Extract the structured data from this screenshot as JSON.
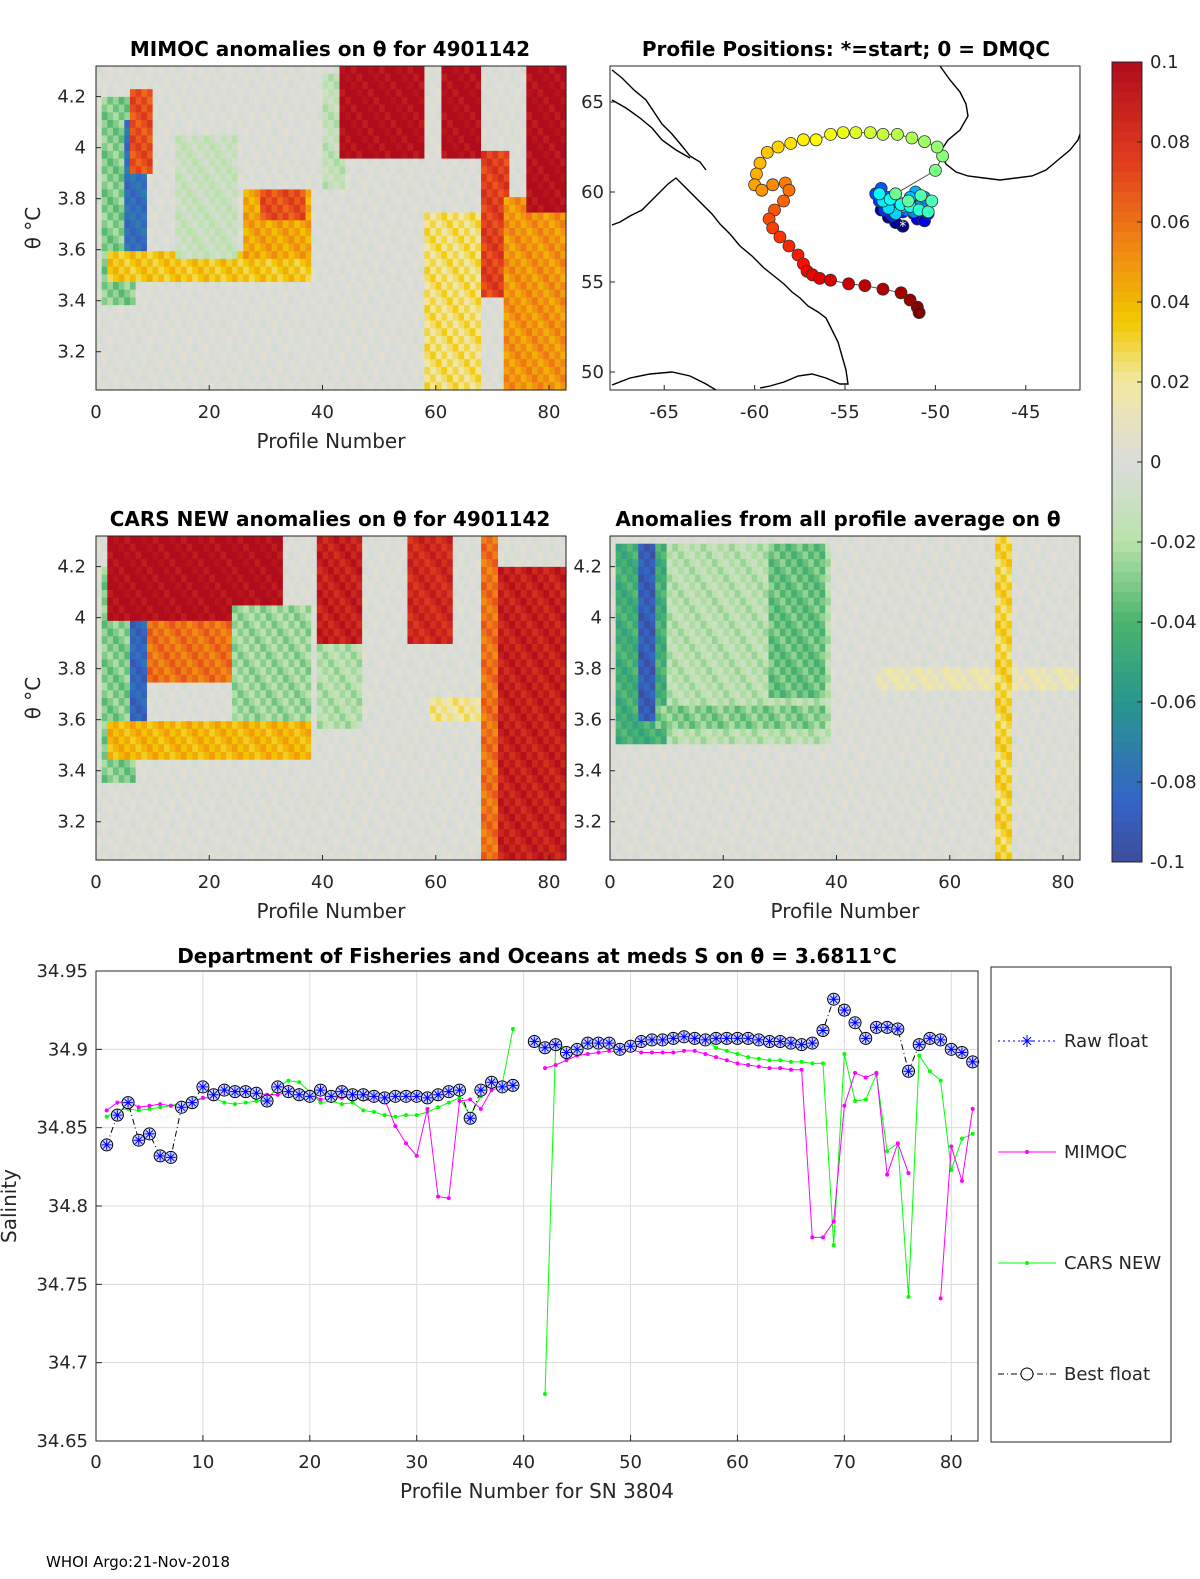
{
  "footer": "WHOI Argo:21-Nov-2018",
  "colors": {
    "background": "#ffffff",
    "nan_gray": "#dcdcdc",
    "raw_float": "#0000ff",
    "mimoc": "#ff00ff",
    "cars": "#00ff00",
    "best": "#000000",
    "track_line": "#555555"
  },
  "chart_data": [
    {
      "id": "mimoc_anomaly",
      "type": "heatmap",
      "title": "MIMOC anomalies on θ  for 4901142",
      "xlabel": "Profile Number",
      "ylabel": "θ °C",
      "xlim": [
        0,
        83
      ],
      "ylim": [
        3.05,
        4.32
      ],
      "xticks": [
        "0",
        "20",
        "40",
        "60",
        "80"
      ],
      "yticks": [
        "3.2",
        "3.4",
        "3.6",
        "3.8",
        "4",
        "4.2"
      ],
      "bands": [
        {
          "x0": 1,
          "x1": 7,
          "y0": 3.38,
          "y1": 4.2,
          "v": -0.03
        },
        {
          "x0": 5,
          "x1": 9,
          "y0": 3.6,
          "y1": 4.12,
          "v": -0.08
        },
        {
          "x0": 6,
          "x1": 10,
          "y0": 3.9,
          "y1": 4.22,
          "v": 0.07
        },
        {
          "x0": 2,
          "x1": 38,
          "y0": 3.46,
          "y1": 3.6,
          "v": 0.035
        },
        {
          "x0": 14,
          "x1": 25,
          "y0": 3.55,
          "y1": 4.05,
          "v": -0.012
        },
        {
          "x0": 26,
          "x1": 38,
          "y0": 3.55,
          "y1": 3.85,
          "v": 0.045
        },
        {
          "x0": 29,
          "x1": 37,
          "y0": 3.72,
          "y1": 3.84,
          "v": 0.07
        },
        {
          "x0": 40,
          "x1": 44,
          "y0": 3.85,
          "y1": 4.3,
          "v": -0.015
        },
        {
          "x0": 43,
          "x1": 58,
          "y0": 3.95,
          "y1": 4.32,
          "v": 0.1
        },
        {
          "x0": 58,
          "x1": 68,
          "y0": 3.05,
          "y1": 3.75,
          "v": 0.025
        },
        {
          "x0": 61,
          "x1": 68,
          "y0": 3.95,
          "y1": 4.32,
          "v": 0.1
        },
        {
          "x0": 68,
          "x1": 73,
          "y0": 3.4,
          "y1": 4.0,
          "v": 0.075
        },
        {
          "x0": 72,
          "x1": 83,
          "y0": 3.05,
          "y1": 3.8,
          "v": 0.05
        },
        {
          "x0": 76,
          "x1": 83,
          "y0": 3.75,
          "y1": 4.32,
          "v": 0.1
        }
      ]
    },
    {
      "id": "profile_positions",
      "type": "scatter",
      "title": "Profile Positions: *=start; 0 = DMQC",
      "xlim": [
        -68,
        -42
      ],
      "ylim": [
        49,
        67
      ],
      "xticks": [
        "-65",
        "-60",
        "-55",
        "-50",
        "-45"
      ],
      "yticks": [
        "50",
        "55",
        "60",
        "65"
      ],
      "lon": [
        -51.8,
        -52.2,
        -52.6,
        -53.0,
        -52.2,
        -51.6,
        -51.2,
        -51.0,
        -50.6,
        -50.4,
        -51.0,
        -51.4,
        -51.8,
        -52.4,
        -52.8,
        -53.1,
        -53.3,
        -53.0,
        -52.6,
        -52.2,
        -51.6,
        -51.2,
        -50.8,
        -50.6,
        -51.1,
        -51.4,
        -51.8,
        -52.2,
        -52.6,
        -52.9,
        -53.1,
        -52.5,
        -51.9,
        -51.4,
        -50.9,
        -50.4,
        -50.2,
        -50.8,
        -51.5,
        -52.2,
        -50.0,
        -49.6,
        -49.9,
        -50.6,
        -51.3,
        -52.1,
        -52.9,
        -53.6,
        -54.4,
        -55.1,
        -55.8,
        -56.6,
        -57.3,
        -58.0,
        -58.7,
        -59.3,
        -59.7,
        -59.9,
        -60.0,
        -59.6,
        -59.0,
        -58.3,
        -58.1,
        -58.4,
        -58.9,
        -59.2,
        -59.0,
        -58.6,
        -58.1,
        -57.6,
        -57.3,
        -57.1,
        -56.8,
        -56.4,
        -55.8,
        -54.8,
        -53.9,
        -52.9,
        -51.9,
        -51.4,
        -51.0,
        -50.9
      ],
      "lat": [
        58.1,
        58.3,
        58.6,
        59.0,
        59.3,
        59.1,
        58.8,
        58.5,
        58.4,
        58.8,
        59.2,
        59.4,
        58.9,
        58.7,
        59.0,
        59.5,
        59.9,
        60.2,
        59.7,
        59.3,
        59.0,
        58.9,
        59.3,
        59.7,
        60.0,
        59.7,
        59.2,
        58.8,
        59.1,
        59.5,
        59.9,
        59.6,
        59.3,
        59.2,
        59.0,
        58.9,
        59.5,
        59.8,
        59.5,
        59.9,
        61.2,
        62.0,
        62.5,
        62.8,
        63.0,
        63.2,
        63.2,
        63.3,
        63.3,
        63.3,
        63.2,
        62.9,
        62.9,
        62.7,
        62.5,
        62.2,
        61.6,
        61.0,
        60.4,
        60.1,
        60.4,
        60.5,
        60.1,
        59.5,
        59.0,
        58.5,
        58.0,
        57.5,
        57.0,
        56.5,
        56.0,
        55.6,
        55.4,
        55.2,
        55.1,
        54.9,
        54.8,
        54.6,
        54.4,
        54.0,
        53.6,
        53.3
      ]
    },
    {
      "id": "colorbar",
      "type": "heatmap",
      "colormap": "parula-like diverging (blue to red)",
      "clim": [
        -0.1,
        0.1
      ],
      "ticks": [
        "0.1",
        "0.08",
        "0.06",
        "0.04",
        "0.02",
        "0",
        "-0.02",
        "-0.04",
        "-0.06",
        "-0.08",
        "-0.1"
      ]
    },
    {
      "id": "cars_anomaly",
      "type": "heatmap",
      "title": "CARS NEW anomalies on θ for 4901142",
      "xlabel": "Profile Number",
      "ylabel": "θ °C",
      "xlim": [
        0,
        83
      ],
      "ylim": [
        3.05,
        4.32
      ],
      "xticks": [
        "0",
        "20",
        "40",
        "60",
        "80"
      ],
      "yticks": [
        "3.2",
        "3.4",
        "3.6",
        "3.8",
        "4",
        "4.2"
      ],
      "bands": [
        {
          "x0": 1,
          "x1": 7,
          "y0": 3.35,
          "y1": 4.2,
          "v": -0.03
        },
        {
          "x0": 6,
          "x1": 9,
          "y0": 3.6,
          "y1": 4.08,
          "v": -0.085
        },
        {
          "x0": 2,
          "x1": 38,
          "y0": 3.45,
          "y1": 3.58,
          "v": 0.04
        },
        {
          "x0": 2,
          "x1": 33,
          "y0": 3.98,
          "y1": 4.32,
          "v": 0.1
        },
        {
          "x0": 9,
          "x1": 33,
          "y0": 3.75,
          "y1": 4.0,
          "v": 0.06
        },
        {
          "x0": 24,
          "x1": 38,
          "y0": 3.6,
          "y1": 4.05,
          "v": -0.025
        },
        {
          "x0": 39,
          "x1": 47,
          "y0": 3.9,
          "y1": 4.32,
          "v": 0.09
        },
        {
          "x0": 39,
          "x1": 47,
          "y0": 3.55,
          "y1": 3.9,
          "v": -0.02
        },
        {
          "x0": 55,
          "x1": 63,
          "y0": 3.9,
          "y1": 4.32,
          "v": 0.085
        },
        {
          "x0": 59,
          "x1": 68,
          "y0": 3.58,
          "y1": 3.68,
          "v": 0.02
        },
        {
          "x0": 68,
          "x1": 71,
          "y0": 3.05,
          "y1": 4.32,
          "v": 0.06
        },
        {
          "x0": 71,
          "x1": 83,
          "y0": 3.05,
          "y1": 4.2,
          "v": 0.09
        }
      ]
    },
    {
      "id": "all_profile_anomaly",
      "type": "heatmap",
      "title": "Anomalies from all profile average on θ",
      "xlabel": "Profile Number",
      "xlim": [
        0,
        83
      ],
      "ylim": [
        3.05,
        4.32
      ],
      "xticks": [
        "0",
        "20",
        "40",
        "60",
        "80"
      ],
      "yticks": [
        "3.2",
        "3.4",
        "3.6",
        "3.8",
        "4",
        "4.2"
      ],
      "bands": [
        {
          "x0": 1,
          "x1": 39,
          "y0": 3.5,
          "y1": 4.3,
          "v": -0.018
        },
        {
          "x0": 1,
          "x1": 10,
          "y0": 3.5,
          "y1": 4.3,
          "v": -0.045
        },
        {
          "x0": 5,
          "x1": 8,
          "y0": 3.6,
          "y1": 4.3,
          "v": -0.09
        },
        {
          "x0": 8,
          "x1": 38,
          "y0": 3.55,
          "y1": 3.65,
          "v": -0.03
        },
        {
          "x0": 28,
          "x1": 38,
          "y0": 3.7,
          "y1": 4.3,
          "v": -0.035
        },
        {
          "x0": 47,
          "x1": 83,
          "y0": 3.72,
          "y1": 3.8,
          "v": 0.012
        },
        {
          "x0": 68,
          "x1": 71,
          "y0": 3.05,
          "y1": 4.32,
          "v": 0.03
        }
      ]
    },
    {
      "id": "salinity_series",
      "type": "line",
      "title": "Department of Fisheries and Oceans at meds S on θ = 3.6811°C",
      "xlabel": "Profile Number for SN 3804",
      "ylabel": "Salinity",
      "xlim": [
        0,
        82.5
      ],
      "ylim": [
        34.65,
        34.95
      ],
      "xticks": [
        "0",
        "10",
        "20",
        "30",
        "40",
        "50",
        "60",
        "70",
        "80"
      ],
      "yticks": [
        "34.65",
        "34.7",
        "34.75",
        "34.8",
        "34.85",
        "34.9",
        "34.95"
      ],
      "x": [
        1,
        2,
        3,
        4,
        5,
        6,
        7,
        8,
        9,
        10,
        11,
        12,
        13,
        14,
        15,
        16,
        17,
        18,
        19,
        20,
        21,
        22,
        23,
        24,
        25,
        26,
        27,
        28,
        29,
        30,
        31,
        32,
        33,
        34,
        35,
        36,
        37,
        38,
        39,
        40,
        41,
        42,
        43,
        44,
        45,
        46,
        47,
        48,
        49,
        50,
        51,
        52,
        53,
        54,
        55,
        56,
        57,
        58,
        59,
        60,
        61,
        62,
        63,
        64,
        65,
        66,
        67,
        68,
        69,
        70,
        71,
        72,
        73,
        74,
        75,
        76,
        77,
        78,
        79,
        80,
        81,
        82
      ],
      "series": [
        {
          "name": "Raw float",
          "style": "dotted-star",
          "values": [
            34.839,
            34.858,
            34.866,
            34.842,
            34.846,
            34.832,
            34.831,
            34.863,
            34.866,
            34.876,
            34.871,
            34.874,
            34.873,
            34.873,
            34.872,
            34.867,
            34.876,
            34.873,
            34.871,
            34.87,
            34.874,
            34.87,
            34.873,
            34.871,
            34.871,
            34.87,
            34.869,
            34.87,
            34.87,
            34.87,
            34.869,
            34.871,
            34.873,
            34.874,
            34.856,
            34.874,
            34.879,
            34.876,
            34.877,
            null,
            34.905,
            34.901,
            34.903,
            34.898,
            34.9,
            34.904,
            34.904,
            34.904,
            34.9,
            34.902,
            34.905,
            34.906,
            34.906,
            34.907,
            34.908,
            34.907,
            34.906,
            34.907,
            34.907,
            34.907,
            34.907,
            34.906,
            34.905,
            34.905,
            34.904,
            34.903,
            34.904,
            34.912,
            34.932,
            34.925,
            34.917,
            34.907,
            34.914,
            34.914,
            34.913,
            34.886,
            34.903,
            34.907,
            34.906,
            34.9,
            34.898,
            34.892
          ]
        },
        {
          "name": "MIMOC",
          "style": "solid-dot",
          "values": [
            34.861,
            34.866,
            34.867,
            34.863,
            34.864,
            34.865,
            34.864,
            34.864,
            34.866,
            34.869,
            34.869,
            34.872,
            34.871,
            34.871,
            34.872,
            34.871,
            34.871,
            34.873,
            34.874,
            34.872,
            34.868,
            34.869,
            34.869,
            34.87,
            34.868,
            34.867,
            34.868,
            34.851,
            34.84,
            34.832,
            34.862,
            34.806,
            34.805,
            34.867,
            34.868,
            34.862,
            34.874,
            34.876,
            null,
            null,
            null,
            34.888,
            34.89,
            34.893,
            34.896,
            34.897,
            34.898,
            34.899,
            34.898,
            34.9,
            34.898,
            34.898,
            34.898,
            34.898,
            34.899,
            34.899,
            34.897,
            34.895,
            34.893,
            34.891,
            34.89,
            34.889,
            34.888,
            34.888,
            34.887,
            34.887,
            34.78,
            34.78,
            34.79,
            34.864,
            34.885,
            34.882,
            34.885,
            34.82,
            34.84,
            34.821,
            null,
            null,
            34.741,
            34.838,
            34.816,
            34.862
          ]
        },
        {
          "name": "CARS NEW",
          "style": "solid-dot",
          "values": [
            34.857,
            34.861,
            34.862,
            34.861,
            34.862,
            34.863,
            34.864,
            34.866,
            34.867,
            34.869,
            34.869,
            34.866,
            34.865,
            34.866,
            34.867,
            34.868,
            34.876,
            34.88,
            34.879,
            34.873,
            34.866,
            34.867,
            34.865,
            34.866,
            34.861,
            34.86,
            34.858,
            34.857,
            34.858,
            34.858,
            34.86,
            34.863,
            34.866,
            34.869,
            34.858,
            34.87,
            34.88,
            34.878,
            34.913,
            null,
            null,
            34.68,
            34.905,
            34.9,
            34.901,
            34.901,
            34.902,
            34.903,
            34.899,
            34.903,
            34.905,
            34.904,
            34.905,
            34.905,
            34.906,
            34.906,
            34.906,
            34.901,
            34.899,
            34.897,
            34.895,
            34.894,
            34.893,
            34.893,
            34.892,
            34.892,
            34.891,
            34.891,
            34.775,
            34.897,
            34.867,
            34.868,
            34.884,
            34.835,
            34.84,
            34.742,
            34.896,
            34.886,
            34.88,
            34.823,
            34.843,
            34.846
          ]
        },
        {
          "name": "Best float",
          "style": "dashdot-circle",
          "values": [
            34.839,
            34.858,
            34.866,
            34.842,
            34.846,
            34.832,
            34.831,
            34.863,
            34.866,
            34.876,
            34.871,
            34.874,
            34.873,
            34.873,
            34.872,
            34.867,
            34.876,
            34.873,
            34.871,
            34.87,
            34.874,
            34.87,
            34.873,
            34.871,
            34.871,
            34.87,
            34.869,
            34.87,
            34.87,
            34.87,
            34.869,
            34.871,
            34.873,
            34.874,
            34.856,
            34.874,
            34.879,
            34.876,
            34.877,
            null,
            34.905,
            34.901,
            34.903,
            34.898,
            34.9,
            34.904,
            34.904,
            34.904,
            34.9,
            34.902,
            34.905,
            34.906,
            34.906,
            34.907,
            34.908,
            34.907,
            34.906,
            34.907,
            34.907,
            34.907,
            34.907,
            34.906,
            34.905,
            34.905,
            34.904,
            34.903,
            34.904,
            34.912,
            34.932,
            34.925,
            34.917,
            34.907,
            34.914,
            34.914,
            34.913,
            34.886,
            34.903,
            34.907,
            34.906,
            34.9,
            34.898,
            34.892
          ]
        }
      ],
      "legend": [
        "Raw float",
        "MIMOC",
        "CARS NEW",
        "Best float"
      ],
      "legend_position": "right",
      "grid": true
    }
  ]
}
